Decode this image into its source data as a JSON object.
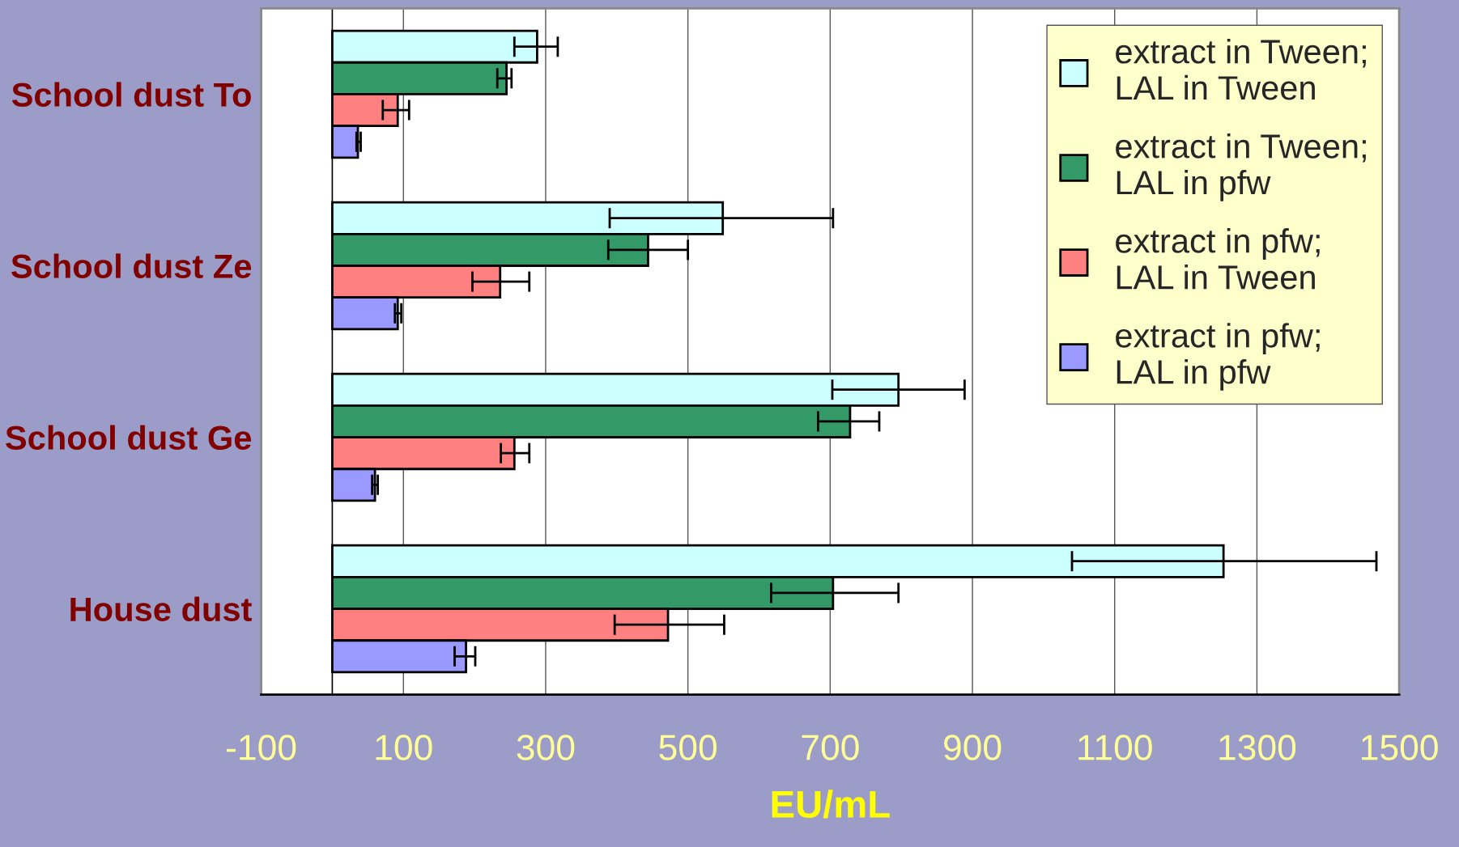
{
  "chart_data": {
    "type": "bar",
    "orientation": "horizontal",
    "xlabel": "EU/mL",
    "categories": [
      "School dust To",
      "School dust Ze",
      "School dust Ge",
      "House dust"
    ],
    "xlim": [
      -100,
      1500
    ],
    "xticks": [
      -100,
      100,
      300,
      500,
      700,
      900,
      1100,
      1300,
      1500
    ],
    "grid": "x",
    "legend": "top right",
    "series": [
      {
        "name": "extract in Tween;\nLAL in Tween",
        "color": "#ccffff",
        "values": [
          288,
          549,
          796,
          1253
        ],
        "errors": [
          [
            256,
            317
          ],
          [
            390,
            704
          ],
          [
            703,
            889
          ],
          [
            1040,
            1468
          ]
        ]
      },
      {
        "name": "extract in Tween;\nLAL in pfw",
        "color": "#339966",
        "values": [
          245,
          444,
          728,
          704
        ],
        "errors": [
          [
            232,
            252
          ],
          [
            388,
            500
          ],
          [
            683,
            769
          ],
          [
            617,
            796
          ]
        ]
      },
      {
        "name": "extract in pfw;\nLAL in Tween",
        "color": "#ff8080",
        "values": [
          92,
          236,
          256,
          472
        ],
        "errors": [
          [
            71,
            108
          ],
          [
            197,
            277
          ],
          [
            237,
            277
          ],
          [
            397,
            551
          ]
        ]
      },
      {
        "name": "extract in pfw;\nLAL in pfw",
        "color": "#9999ff",
        "values": [
          36,
          92,
          60,
          188
        ],
        "errors": [
          [
            34,
            40
          ],
          [
            88,
            97
          ],
          [
            56,
            64
          ],
          [
            172,
            201
          ]
        ]
      }
    ]
  }
}
